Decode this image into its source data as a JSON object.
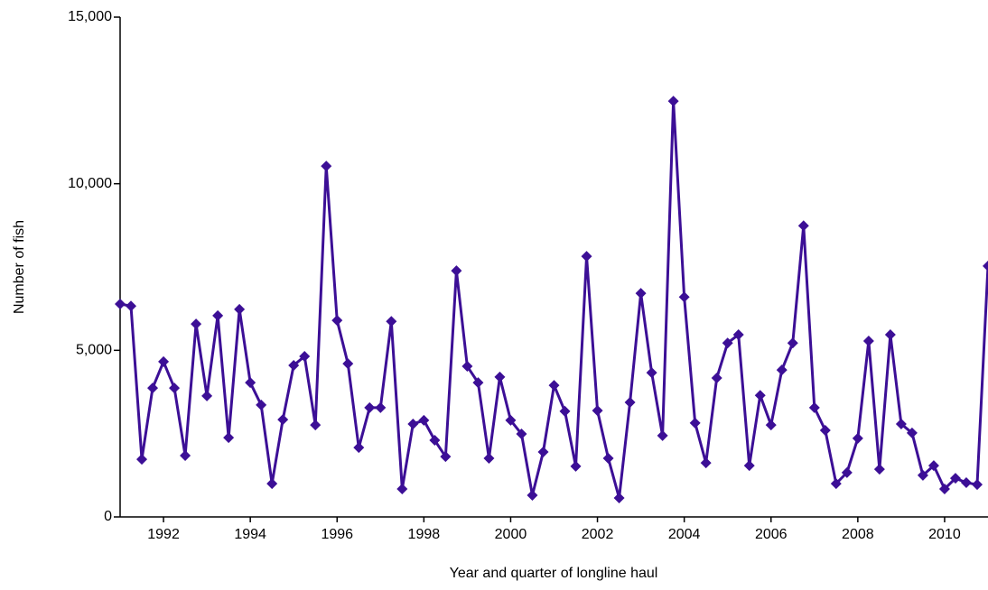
{
  "chart_data": {
    "type": "line",
    "x_label": "Year and quarter of longline haul",
    "y_label": "Number of fish",
    "color": "#3c0f96",
    "x": [
      1991,
      1991.25,
      1991.5,
      1991.75,
      1992,
      1992.25,
      1992.5,
      1992.75,
      1993,
      1993.25,
      1993.5,
      1993.75,
      1994,
      1994.25,
      1994.5,
      1994.75,
      1995,
      1995.25,
      1995.5,
      1995.75,
      1996,
      1996.25,
      1996.5,
      1996.75,
      1997,
      1997.25,
      1997.5,
      1997.75,
      1998,
      1998.25,
      1998.5,
      1998.75,
      1999,
      1999.25,
      1999.5,
      1999.75,
      2000,
      2000.25,
      2000.5,
      2000.75,
      2001,
      2001.25,
      2001.5,
      2001.75,
      2002,
      2002.25,
      2002.5,
      2002.75,
      2003,
      2003.25,
      2003.5,
      2003.75,
      2004,
      2004.25,
      2004.5,
      2004.75,
      2005,
      2005.25,
      2005.5,
      2005.75,
      2006,
      2006.25,
      2006.5,
      2006.75,
      2007,
      2007.25,
      2007.5,
      2007.75,
      2008,
      2008.25,
      2008.5,
      2008.75,
      2009,
      2009.25,
      2009.5,
      2009.75,
      2010,
      2010.25,
      2010.5,
      2010.75,
      2011
    ],
    "values": [
      6390,
      6330,
      1730,
      3870,
      4660,
      3870,
      1840,
      5790,
      3630,
      6040,
      2380,
      6230,
      4030,
      3360,
      1000,
      2920,
      4550,
      4820,
      2760,
      10530,
      5900,
      4600,
      2080,
      3280,
      3280,
      5870,
      840,
      2790,
      2900,
      2300,
      1810,
      7390,
      4520,
      4030,
      1760,
      4200,
      2900,
      2490,
      650,
      1950,
      3950,
      3170,
      1520,
      7820,
      3190,
      1760,
      570,
      3440,
      6710,
      4330,
      2440,
      12480,
      6600,
      2820,
      1620,
      4170,
      5220,
      5470,
      1540,
      3650,
      2760,
      4410,
      5220,
      8740,
      3280,
      2600,
      1000,
      1330,
      2360,
      5280,
      1430,
      5470,
      2790,
      2520,
      1250,
      1540,
      840,
      1160,
      1030,
      970,
      7530
    ],
    "xlim": [
      1991,
      2011
    ],
    "xticks": [
      1992,
      1994,
      1996,
      1998,
      2000,
      2002,
      2004,
      2006,
      2008,
      2010
    ],
    "ylim": [
      0,
      15000
    ],
    "yticks": [
      0,
      {
        "value": 5000,
        "label": "5,000"
      },
      {
        "value": 10000,
        "label": "10,000"
      },
      {
        "value": 15000,
        "label": "15,000"
      }
    ]
  }
}
